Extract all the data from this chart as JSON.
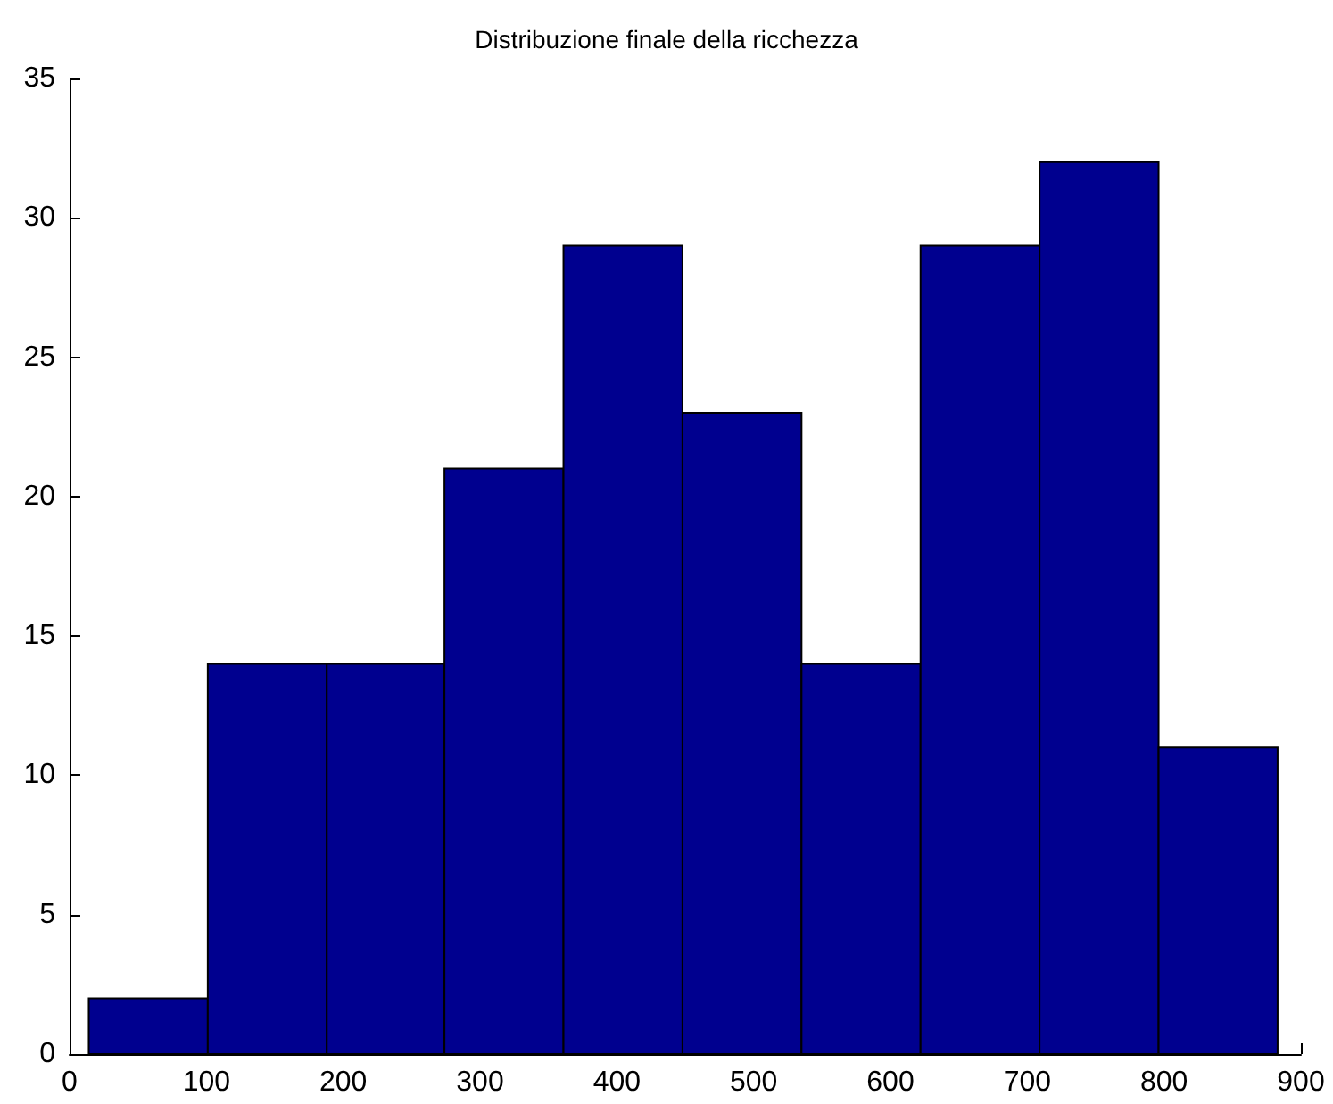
{
  "chart_data": {
    "type": "histogram",
    "title": "Distribuzione finale della ricchezza",
    "bins": [
      14,
      101,
      188,
      274,
      361,
      448,
      535,
      622,
      709,
      796,
      883
    ],
    "values": [
      2,
      14,
      14,
      21,
      29,
      23,
      14,
      29,
      32,
      11
    ],
    "color": "#00008f",
    "xlim": [
      0,
      900
    ],
    "xticks": [
      0,
      100,
      200,
      300,
      400,
      500,
      600,
      700,
      800,
      900
    ],
    "ylim": [
      0,
      35
    ],
    "yticks": [
      0,
      5,
      10,
      15,
      20,
      25,
      30,
      35
    ],
    "grid": false
  }
}
